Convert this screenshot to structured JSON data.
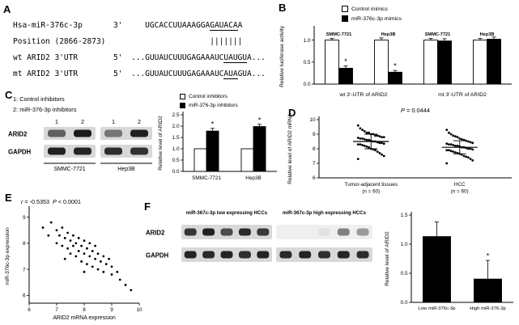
{
  "panels": {
    "A": {
      "label": "A",
      "rows": [
        {
          "c1": "Hsa-miR-376c-3p",
          "c2": "3'",
          "seq": [
            {
              "t": "   UGCACCUUAAAGGA"
            },
            {
              "t": "GAUACA",
              "u": true
            },
            {
              "t": "A"
            }
          ]
        },
        {
          "c1": "Position (2866-2873)",
          "c2": "",
          "seq": [
            {
              "t": "                 |||||||"
            }
          ]
        },
        {
          "c1": "wt ARID2 3'UTR",
          "c2": "5'",
          "seq": [
            {
              "t": "...GUUAUCUUUGAGAAAUC"
            },
            {
              "t": "UAUGU",
              "u": true
            },
            {
              "t": "A..."
            }
          ]
        },
        {
          "c1": "mt ARID2 3'UTR",
          "c2": "5'",
          "seq": [
            {
              "t": "...GUUAUCUUUGAGAAAUC"
            },
            {
              "t": "AUA",
              "u": true
            },
            {
              "t": "GUA..."
            }
          ]
        }
      ]
    },
    "B": {
      "label": "B"
    },
    "C": {
      "label": "C",
      "key_lines": [
        "1: Control inhibitors",
        "2: miR-376-3p inhibitors"
      ],
      "blot": {
        "lane_numbers": [
          "1",
          "2",
          "1",
          "2"
        ],
        "rows": [
          {
            "label": "ARID2",
            "lanes": [
              0.6,
              0.95,
              0.5,
              0.92
            ]
          },
          {
            "label": "GAPDH",
            "lanes": [
              0.92,
              0.9,
              0.86,
              0.84
            ]
          }
        ],
        "groups": [
          "SMMC-7721",
          "Hep3B"
        ]
      }
    },
    "D": {
      "label": "D",
      "title_italic": "P",
      "title_rest": " = 0.0444"
    },
    "E": {
      "label": "E",
      "r_italic": "r",
      "r_rest": " = -0.5353",
      "p_italic": "P",
      "p_rest": " < 0.0001"
    },
    "F": {
      "label": "F",
      "blot": {
        "headers": [
          "miR-367c-3p low expressing HCCs",
          "miR-367c-3p high expressing HCCs"
        ],
        "rows": [
          {
            "label": "ARID2",
            "halves": [
              {
                "bg": "#d8d8d8",
                "lanes": [
                  0.82,
                  0.92,
                  0.7,
                  0.88,
                  0.8
                ]
              },
              {
                "bg": "#efefef",
                "lanes": [
                  0,
                  0,
                  0.06,
                  0.5,
                  0.38
                ]
              }
            ]
          },
          {
            "label": "GAPDH",
            "halves": [
              {
                "bg": "#d8d8d8",
                "lanes": [
                  0.9,
                  0.88,
                  0.9,
                  0.86,
                  0.9
                ]
              },
              {
                "bg": "#d8d8d8",
                "lanes": [
                  0.88,
                  0.9,
                  0.85,
                  0.9,
                  0.87
                ]
              }
            ]
          }
        ]
      }
    }
  },
  "chart_data": [
    {
      "id": "B",
      "type": "bar",
      "ylabel": "Relative luciferase activity",
      "ylim": [
        0,
        1.25
      ],
      "yticks": [
        0,
        0.5,
        1
      ],
      "cells": [
        "",
        "",
        "",
        ""
      ],
      "cell_top_labels": [
        "SMMC-7721",
        "Hep3B",
        "SMMC-7721",
        "Hep3B"
      ],
      "group_labels": [
        "wt 3'-UTR of ARID2",
        "mt 3'-UTR of ARID2"
      ],
      "series": [
        {
          "name": "Control mimics",
          "fill": "#ffffff",
          "values": [
            1.0,
            1.0,
            1.0,
            1.0
          ],
          "errors": [
            0.04,
            0.05,
            0.04,
            0.04
          ],
          "sig": [
            "",
            "",
            "",
            ""
          ]
        },
        {
          "name": "miR-376c-3p mimics",
          "fill": "#000000",
          "values": [
            0.36,
            0.27,
            0.98,
            1.02
          ],
          "errors": [
            0.05,
            0.04,
            0.05,
            0.05
          ],
          "sig": [
            "*",
            "*",
            "",
            ""
          ]
        }
      ]
    },
    {
      "id": "C",
      "type": "bar",
      "ylabel": "Relative level of ARID2",
      "ylim": [
        0,
        2.5
      ],
      "yticks": [
        0,
        0.5,
        1,
        1.5,
        2,
        2.5
      ],
      "cells": [
        "SMMC-7721",
        "Hep3B"
      ],
      "series": [
        {
          "name": "Control inhibitors",
          "fill": "#ffffff",
          "values": [
            1.0,
            1.0
          ],
          "errors": [
            0,
            0
          ],
          "sig": [
            "",
            ""
          ]
        },
        {
          "name": "miR-376-3p inhibitors",
          "fill": "#000000",
          "values": [
            1.78,
            1.98
          ],
          "errors": [
            0.12,
            0.1
          ],
          "sig": [
            "*",
            "*"
          ]
        }
      ]
    },
    {
      "id": "D",
      "type": "scatter-column",
      "ylabel": "Relative level of ARID2 mRNA",
      "ylim": [
        6,
        10
      ],
      "yticks": [
        6,
        7,
        8,
        9,
        10
      ],
      "groups": [
        {
          "label_lines": [
            "Tumor-adjacent tissues",
            "(n = 60)"
          ],
          "mean": 8.5,
          "sd": 0.5,
          "values": [
            9.6,
            9.4,
            9.3,
            9.2,
            9.1,
            9.1,
            9.0,
            9.0,
            8.9,
            8.9,
            8.85,
            8.8,
            8.8,
            8.75,
            8.7,
            8.7,
            8.65,
            8.6,
            8.6,
            8.55,
            8.5,
            8.5,
            8.45,
            8.4,
            8.4,
            8.35,
            8.3,
            8.3,
            8.25,
            8.2,
            8.15,
            8.1,
            8.0,
            7.95,
            7.9,
            7.8,
            7.7,
            7.6,
            7.5,
            7.3
          ]
        },
        {
          "label_lines": [
            "HCC",
            "(n = 60)"
          ],
          "mean": 8.1,
          "sd": 0.45,
          "values": [
            9.3,
            9.1,
            9.0,
            8.9,
            8.85,
            8.8,
            8.7,
            8.65,
            8.6,
            8.55,
            8.5,
            8.45,
            8.4,
            8.35,
            8.3,
            8.3,
            8.25,
            8.2,
            8.2,
            8.15,
            8.1,
            8.1,
            8.05,
            8.0,
            8.0,
            7.95,
            7.9,
            7.9,
            7.85,
            7.8,
            7.75,
            7.7,
            7.65,
            7.6,
            7.5,
            7.45,
            7.4,
            7.3,
            7.2,
            7.0
          ]
        }
      ]
    },
    {
      "id": "E",
      "type": "scatter",
      "xlabel": "ARID2 mRNA expression",
      "ylabel": "miR-376c-3p expression",
      "xlim": [
        6,
        10
      ],
      "xticks": [
        6,
        7,
        8,
        9,
        10
      ],
      "ylim": [
        5.7,
        9.3
      ],
      "yticks": [
        6,
        7,
        8,
        9
      ],
      "r": "-0.5353",
      "p": "< 0.0001",
      "points": [
        [
          6.5,
          8.6
        ],
        [
          6.7,
          8.3
        ],
        [
          6.8,
          8.8
        ],
        [
          7.0,
          8.5
        ],
        [
          7.0,
          8.0
        ],
        [
          7.1,
          8.3
        ],
        [
          7.2,
          8.6
        ],
        [
          7.2,
          7.9
        ],
        [
          7.3,
          8.2
        ],
        [
          7.3,
          7.4
        ],
        [
          7.4,
          8.4
        ],
        [
          7.4,
          7.8
        ],
        [
          7.5,
          8.1
        ],
        [
          7.5,
          7.6
        ],
        [
          7.6,
          8.3
        ],
        [
          7.6,
          7.9
        ],
        [
          7.7,
          8.0
        ],
        [
          7.7,
          7.5
        ],
        [
          7.8,
          8.2
        ],
        [
          7.8,
          7.7
        ],
        [
          7.9,
          7.9
        ],
        [
          7.9,
          7.3
        ],
        [
          8.0,
          8.1
        ],
        [
          8.0,
          7.6
        ],
        [
          8.0,
          6.9
        ],
        [
          8.1,
          7.8
        ],
        [
          8.1,
          7.2
        ],
        [
          8.2,
          8.0
        ],
        [
          8.2,
          7.5
        ],
        [
          8.3,
          7.7
        ],
        [
          8.3,
          7.1
        ],
        [
          8.4,
          7.9
        ],
        [
          8.4,
          7.4
        ],
        [
          8.5,
          7.6
        ],
        [
          8.5,
          7.0
        ],
        [
          8.6,
          7.3
        ],
        [
          8.7,
          7.5
        ],
        [
          8.7,
          6.9
        ],
        [
          8.8,
          7.2
        ],
        [
          8.9,
          7.4
        ],
        [
          9.0,
          7.1
        ],
        [
          9.0,
          6.8
        ],
        [
          9.2,
          6.9
        ],
        [
          9.3,
          6.6
        ],
        [
          9.5,
          6.4
        ],
        [
          9.7,
          6.2
        ]
      ]
    },
    {
      "id": "F",
      "type": "bar",
      "ylabel": "Relative level of ARID2",
      "ylim": [
        0,
        1.5
      ],
      "yticks": [
        0,
        0.5,
        1,
        1.5
      ],
      "cells": [
        "Low miR-376c-3p",
        "High miR-376-3p"
      ],
      "series": [
        {
          "name": "",
          "fill": "#000000",
          "values": [
            1.13,
            0.4
          ],
          "errors": [
            0.25,
            0.32
          ],
          "sig": [
            "",
            "*"
          ]
        }
      ]
    }
  ]
}
